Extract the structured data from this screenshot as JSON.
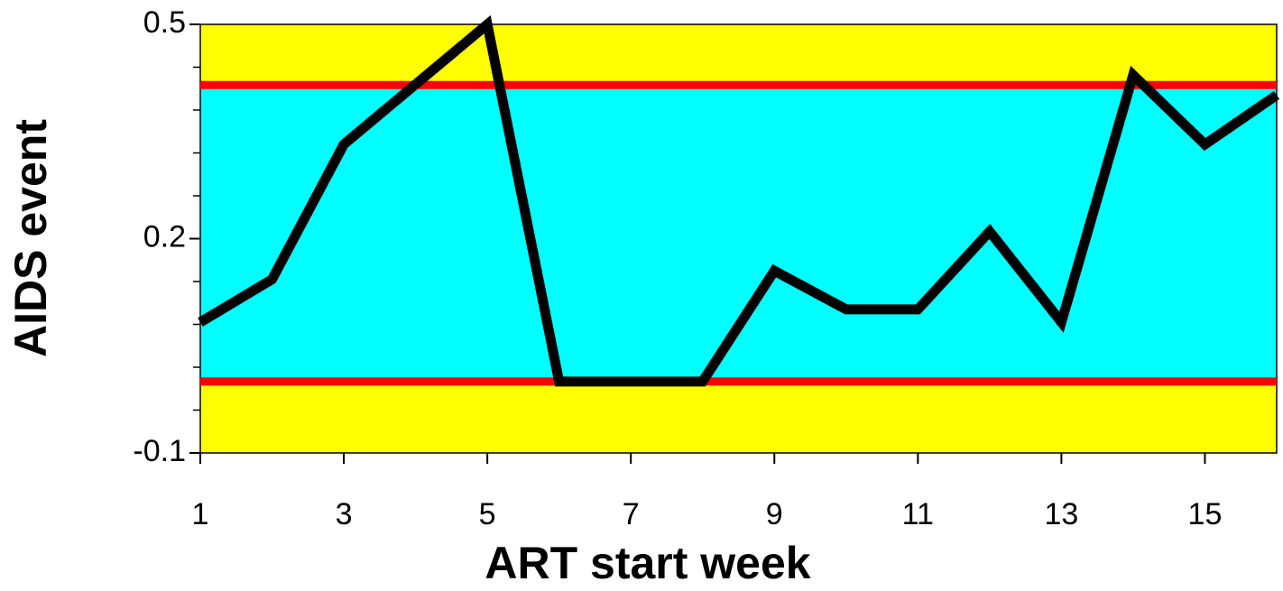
{
  "chart_data": {
    "type": "line",
    "x_label": "ART start week",
    "y_label": "AIDS event",
    "x": [
      1,
      2,
      3,
      4,
      5,
      6,
      7,
      8,
      9,
      10,
      11,
      12,
      13,
      14,
      15,
      16
    ],
    "series": [
      {
        "color": "#000000",
        "values": [
          0.083,
          0.143,
          0.332,
          0.416,
          0.5,
          0,
          0,
          0,
          0.155,
          0.101,
          0.101,
          0.21,
          0.083,
          0.429,
          0.332,
          0.401
        ]
      }
    ],
    "xlim": [
      1,
      16
    ],
    "xticks": [
      1,
      3,
      5,
      7,
      9,
      11,
      13,
      15
    ],
    "ylim": [
      -0.1,
      0.5
    ],
    "yticks": [
      -0.1,
      0.2,
      0.5
    ],
    "minor_yticks": [
      -0.04,
      0.02,
      0.08,
      0.14,
      0.26,
      0.32,
      0.38,
      0.44
    ],
    "control_limits": {
      "upper": 0.415,
      "lower": 0,
      "color": "#ff0000",
      "inside_color": "#00ffff",
      "outside_color": "#ffff00"
    }
  }
}
